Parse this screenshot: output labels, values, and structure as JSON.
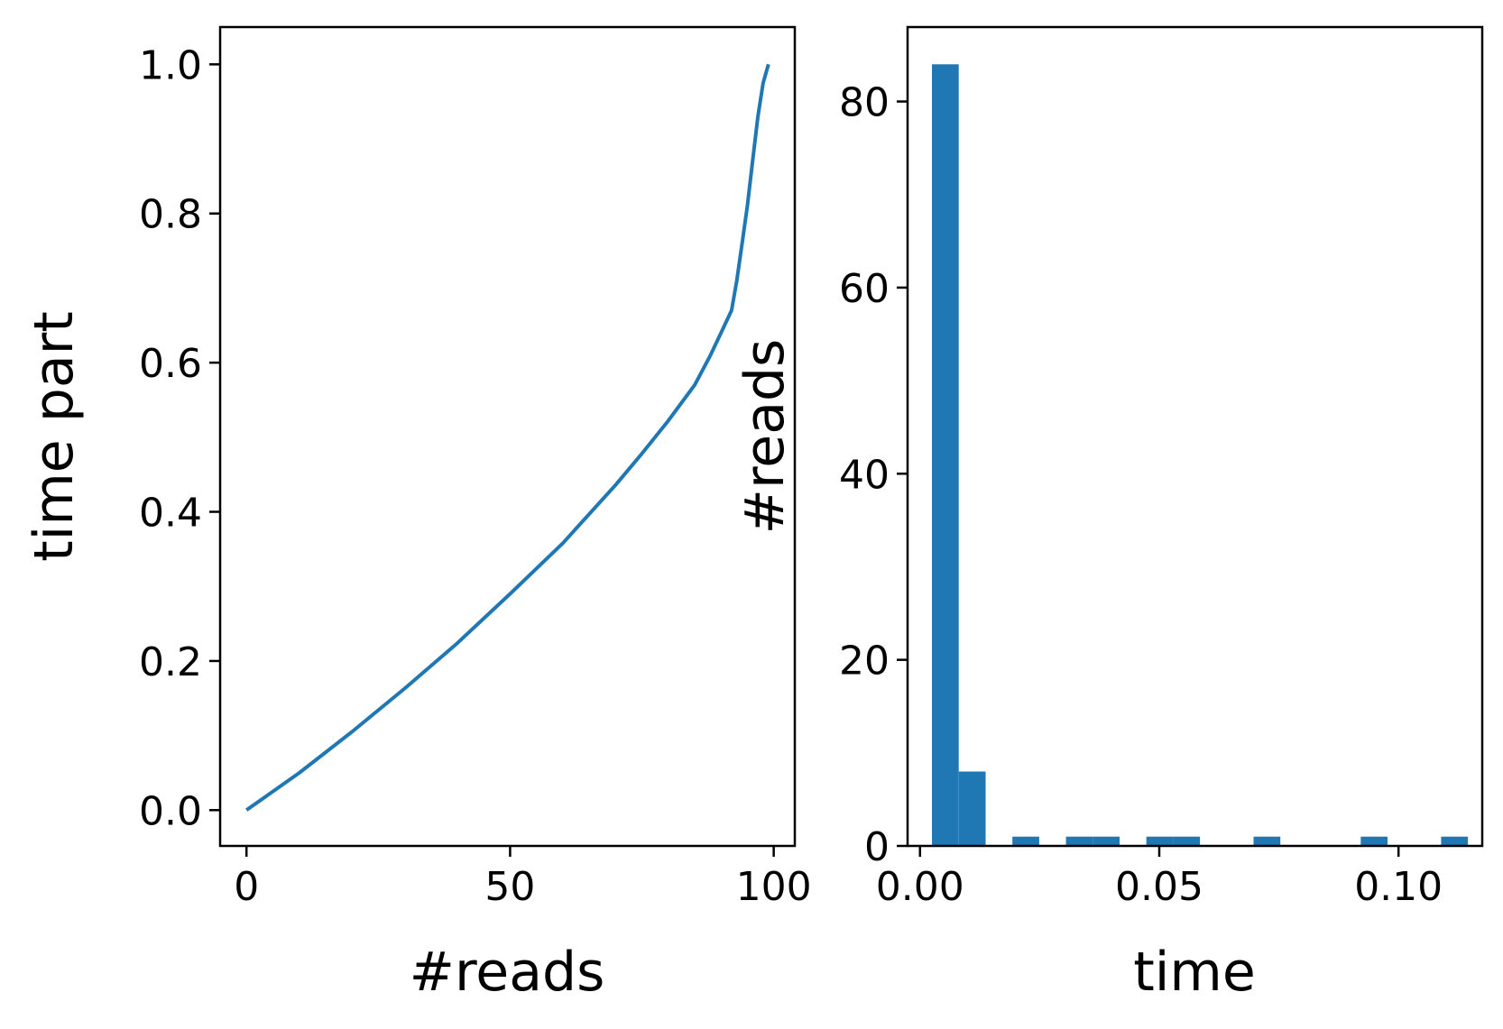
{
  "chart_data": [
    {
      "type": "line",
      "xlabel": "#reads",
      "ylabel": "time part",
      "xlim": [
        -5,
        104
      ],
      "ylim": [
        -0.048,
        1.05
      ],
      "xticks": [
        0,
        50,
        100
      ],
      "xtick_labels": [
        "0",
        "50",
        "100"
      ],
      "yticks": [
        0.0,
        0.2,
        0.4,
        0.6,
        0.8,
        1.0
      ],
      "ytick_labels": [
        "0.0",
        "0.2",
        "0.4",
        "0.6",
        "0.8",
        "1.0"
      ],
      "color": "#1f77b4",
      "grid": false,
      "series": [
        {
          "x": [
            0,
            10,
            20,
            30,
            40,
            50,
            60,
            70,
            75,
            80,
            85,
            88,
            90,
            92,
            93,
            94,
            95,
            96,
            97,
            98,
            99
          ],
          "y": [
            0.0,
            0.05,
            0.105,
            0.163,
            0.224,
            0.29,
            0.358,
            0.436,
            0.478,
            0.522,
            0.57,
            0.61,
            0.64,
            0.67,
            0.71,
            0.76,
            0.81,
            0.87,
            0.93,
            0.975,
            1.0
          ]
        }
      ]
    },
    {
      "type": "bar",
      "xlabel": "time",
      "ylabel": "#reads",
      "xlim": [
        -0.0026,
        0.1175
      ],
      "ylim": [
        0,
        88
      ],
      "xticks": [
        0.0,
        0.05,
        0.1
      ],
      "xtick_labels": [
        "0.00",
        "0.05",
        "0.10"
      ],
      "yticks": [
        0,
        20,
        40,
        60,
        80
      ],
      "ytick_labels": [
        "0",
        "20",
        "40",
        "60",
        "80"
      ],
      "color": "#1f77b4",
      "grid": false,
      "bins": [
        {
          "x0": 0.0025,
          "x1": 0.0081,
          "value": 84
        },
        {
          "x0": 0.0081,
          "x1": 0.0137,
          "value": 8
        },
        {
          "x0": 0.0193,
          "x1": 0.0249,
          "value": 1
        },
        {
          "x0": 0.0305,
          "x1": 0.0361,
          "value": 1
        },
        {
          "x0": 0.0361,
          "x1": 0.0417,
          "value": 1
        },
        {
          "x0": 0.0473,
          "x1": 0.0529,
          "value": 1
        },
        {
          "x0": 0.0529,
          "x1": 0.0585,
          "value": 1
        },
        {
          "x0": 0.0697,
          "x1": 0.0753,
          "value": 1
        },
        {
          "x0": 0.0921,
          "x1": 0.0977,
          "value": 1
        },
        {
          "x0": 0.1089,
          "x1": 0.1145,
          "value": 1
        }
      ]
    }
  ]
}
